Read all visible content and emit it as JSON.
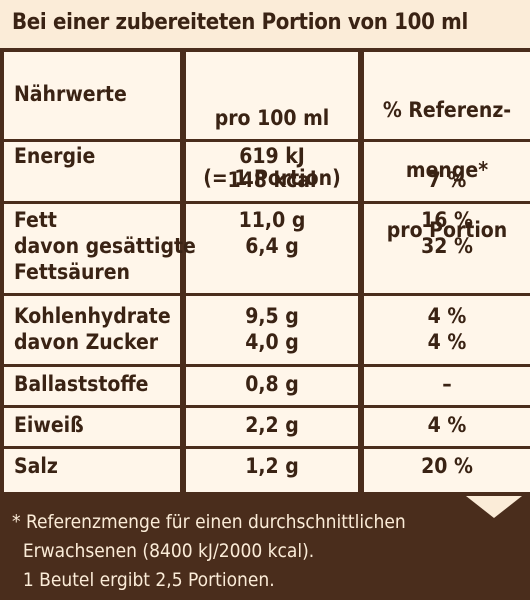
{
  "title": "Bei einer zubereiteten Portion von 100 ml",
  "header": {
    "col1": "Nährwerte",
    "col2_line1": "pro 100 ml",
    "col2_line2": "(= 1 Portion)",
    "col3_line1": "% Referenz-",
    "col3_line2": "menge*",
    "col3_line3": "pro Portion"
  },
  "rows": [
    {
      "name": [
        "Energie"
      ],
      "value": [
        "619 kJ",
        "148 kcal"
      ],
      "ref": [
        "",
        "7 %"
      ]
    },
    {
      "name": [
        "Fett",
        "davon gesättigte",
        "Fettsäuren"
      ],
      "value": [
        "11,0 g",
        "6,4 g"
      ],
      "ref": [
        "16 %",
        "32 %"
      ]
    },
    {
      "name": [
        "Kohlenhydrate",
        "davon Zucker"
      ],
      "value": [
        "9,5 g",
        "4,0 g"
      ],
      "ref": [
        "4 %",
        "4 %"
      ]
    },
    {
      "name": [
        "Ballaststoffe"
      ],
      "value": [
        "0,8 g"
      ],
      "ref": [
        "–"
      ]
    },
    {
      "name": [
        "Eiweiß"
      ],
      "value": [
        "2,2 g"
      ],
      "ref": [
        "4 %"
      ]
    },
    {
      "name": [
        "Salz"
      ],
      "value": [
        "1,2 g"
      ],
      "ref": [
        "20 %"
      ]
    }
  ],
  "footnote": [
    "* Referenzmenge für einen durchschnittlichen",
    "  Erwachsenen (8400 kJ/2000 kcal).",
    "  1 Beutel ergibt 2,5 Portionen."
  ],
  "colors": {
    "brown": "#4a2d1c",
    "cream": "#fff6ea",
    "beige": "#fbecd8"
  }
}
